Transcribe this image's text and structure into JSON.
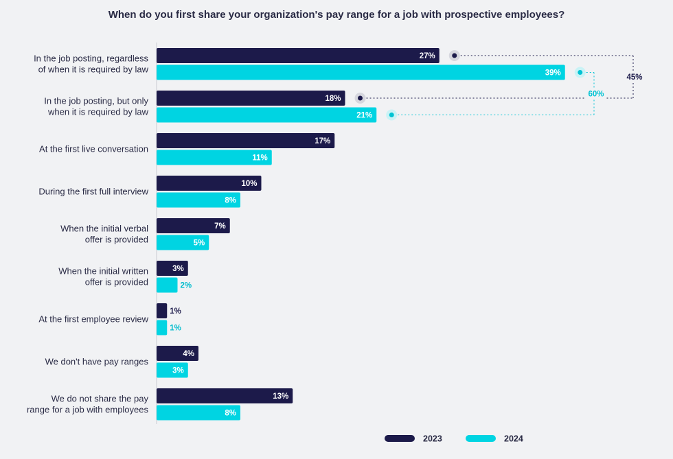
{
  "chart_data": {
    "type": "bar",
    "orientation": "horizontal",
    "title": "When do you first share your organization's pay range for a job with prospective employees?",
    "categories": [
      [
        "In the job posting, regardless",
        "of when it is required by law"
      ],
      [
        "In the job posting, but only",
        "when it is required by law"
      ],
      [
        "At the first live conversation"
      ],
      [
        "During the first full interview"
      ],
      [
        "When the initial verbal",
        "offer is provided"
      ],
      [
        "When the initial written",
        "offer is provided"
      ],
      [
        "At the first employee review"
      ],
      [
        "We don't have pay ranges"
      ],
      [
        "We do not share the pay",
        "range for a job with employees"
      ]
    ],
    "series": [
      {
        "name": "2023",
        "color": "#1c1a4a",
        "values": [
          27,
          18,
          17,
          10,
          7,
          3,
          1,
          4,
          13
        ]
      },
      {
        "name": "2024",
        "color": "#00d4e2",
        "values": [
          39,
          21,
          11,
          8,
          5,
          2,
          1,
          3,
          8
        ]
      }
    ],
    "value_suffix": "%",
    "annotations": [
      {
        "series": "2023",
        "categories": [
          0,
          1
        ],
        "label": "45%",
        "color": "#1c1a4a"
      },
      {
        "series": "2024",
        "categories": [
          0,
          1
        ],
        "label": "60%",
        "color": "#00c3d3"
      }
    ],
    "legend_position": "bottom",
    "grid": false
  }
}
